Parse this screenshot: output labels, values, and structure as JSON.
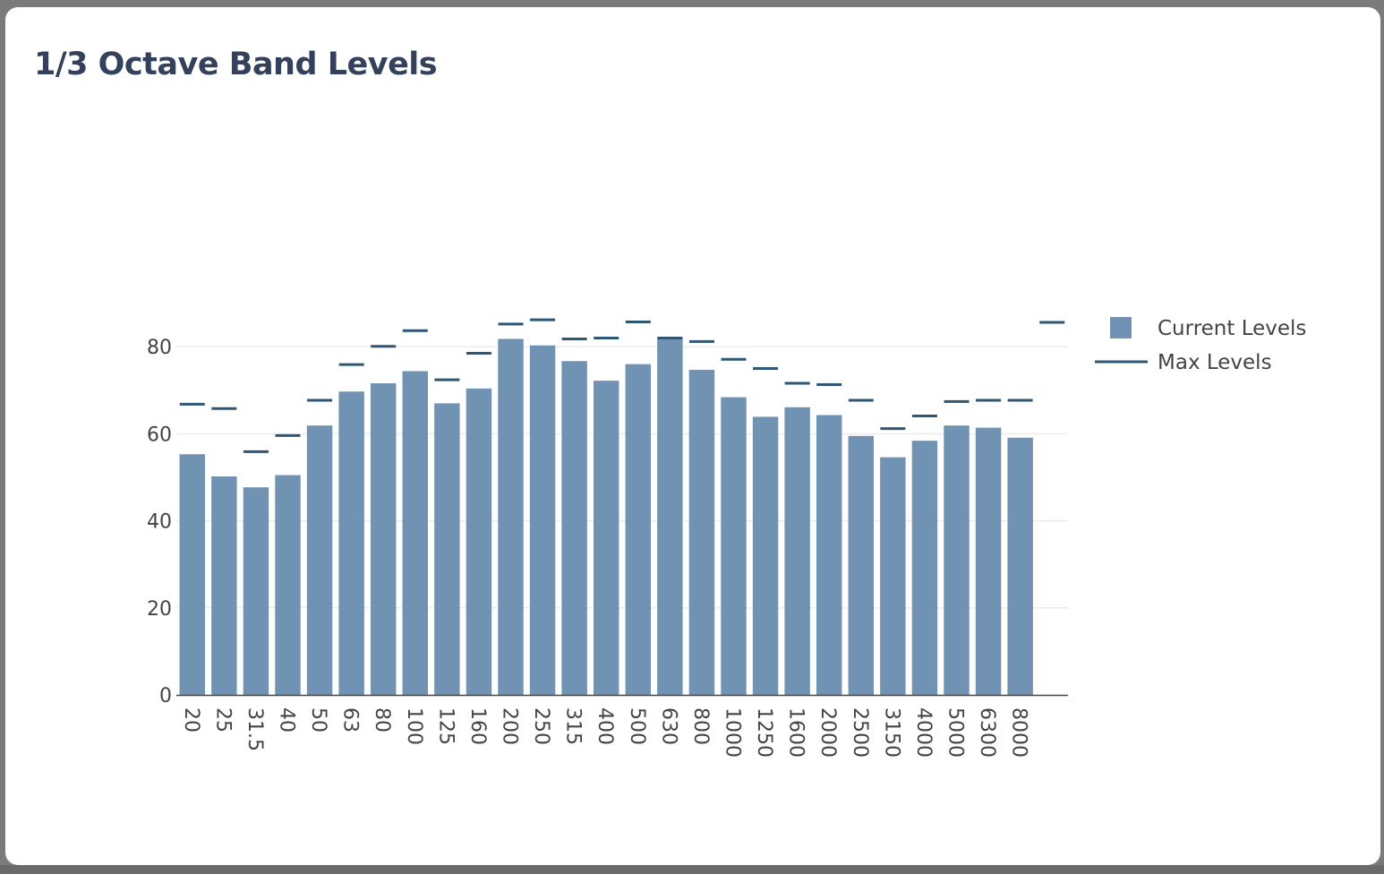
{
  "modal": {
    "title": "1/3 Octave Band Levels"
  },
  "colors": {
    "bar": "#7193b3",
    "max_line": "#2e5675",
    "grid": "#ececec",
    "axis": "#444444",
    "title": "#33415c"
  },
  "chart_data": {
    "type": "bar",
    "categories": [
      "20",
      "25",
      "31.5",
      "40",
      "50",
      "63",
      "80",
      "100",
      "125",
      "160",
      "200",
      "250",
      "315",
      "400",
      "500",
      "630",
      "800",
      "1000",
      "1250",
      "1600",
      "2000",
      "2500",
      "3150",
      "4000",
      "5000",
      "6300",
      "8000",
      ""
    ],
    "series": [
      {
        "name": "Current Levels",
        "type": "bar",
        "values": [
          55.3,
          50.2,
          47.7,
          50.5,
          61.9,
          69.7,
          71.6,
          74.4,
          67.0,
          70.4,
          81.8,
          80.3,
          76.7,
          72.2,
          76.0,
          82.0,
          74.7,
          68.4,
          63.9,
          66.1,
          64.3,
          59.5,
          54.6,
          58.4,
          61.9,
          61.4,
          59.1,
          null
        ]
      },
      {
        "name": "Max Levels",
        "type": "marker-line",
        "values": [
          66.8,
          65.8,
          55.9,
          59.6,
          67.7,
          75.9,
          80.1,
          83.7,
          72.4,
          78.5,
          85.2,
          86.2,
          81.8,
          82.0,
          85.7,
          82.0,
          81.2,
          77.1,
          75.0,
          71.6,
          71.3,
          67.7,
          61.2,
          64.1,
          67.4,
          67.7,
          67.7,
          85.6
        ]
      }
    ],
    "yticks": [
      0,
      20,
      40,
      60,
      80
    ],
    "ylim": [
      0,
      100
    ],
    "grid": true,
    "legend": "top-right"
  }
}
